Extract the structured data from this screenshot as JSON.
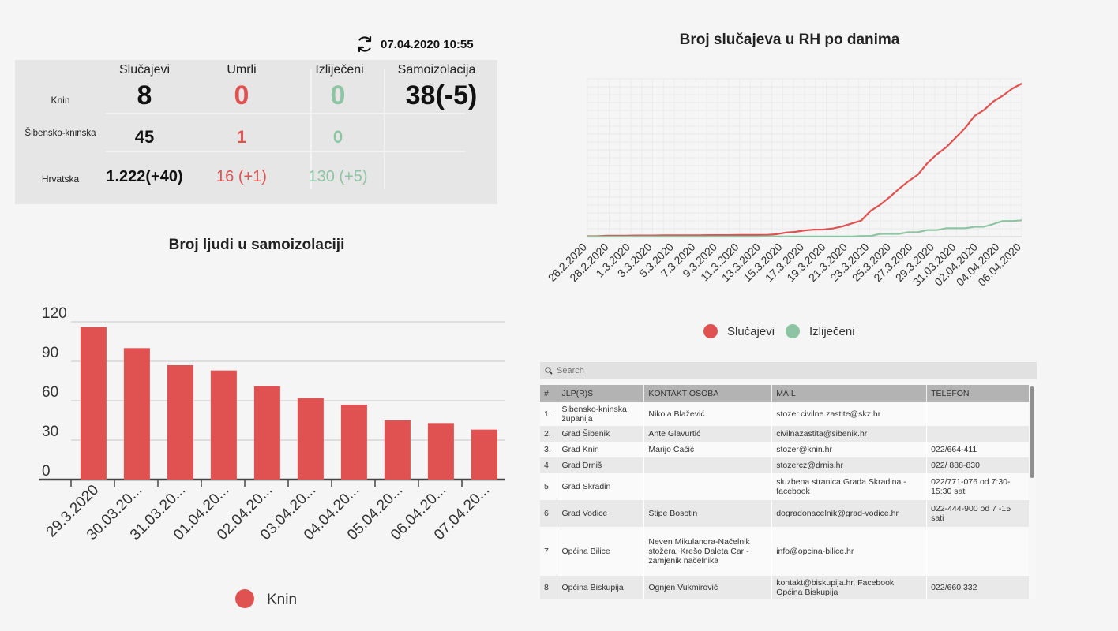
{
  "refresh": {
    "icon": "refresh-icon",
    "timestamp": "07.04.2020 10:55"
  },
  "stats": {
    "headers": [
      "Slučajevi",
      "Umrli",
      "Izliječeni",
      "Samoizolacija"
    ],
    "rows": [
      {
        "label": "Knin",
        "cases": "8",
        "deaths": "0",
        "recovered": "0",
        "isolation": "38(-5)"
      },
      {
        "label": "Šibensko-kninska",
        "cases": "45",
        "deaths": "1",
        "recovered": "0",
        "isolation": ""
      },
      {
        "label": "Hrvatska",
        "cases": "1.222(+40)",
        "deaths": "16 (+1)",
        "recovered": "130 (+5)",
        "isolation": ""
      }
    ],
    "colors": {
      "deaths": "#e05252",
      "recovered": "#8dc4a3"
    }
  },
  "line_title": "Broj slučajeva u RH po danima",
  "bar_title": "Broj ljudi u samoizolaciji",
  "chart_data": [
    {
      "type": "line",
      "title": "Broj slučajeva u RH po danima",
      "x_ticks": [
        "26.2.2020",
        "28.2.2020",
        "1.3.2020",
        "3.3.2020",
        "5.3.2020",
        "7.3.2020",
        "9.3.2020",
        "11.3.2020",
        "13.3.2020",
        "15.3.2020",
        "17.3.2020",
        "19.3.2020",
        "21.3.2020",
        "23.3.2020",
        "25.3.2020",
        "27.3.2020",
        "29.3.2020",
        "31.03.2020",
        "02.04.2020",
        "04.04.2020",
        "06.04.2020"
      ],
      "grid": true,
      "legend_position": "bottom",
      "series": [
        {
          "name": "Slučajevi",
          "color": "#e05252",
          "values": [
            3,
            3,
            7,
            7,
            7,
            9,
            9,
            9,
            10,
            11,
            11,
            11,
            11,
            12,
            12,
            12,
            13,
            13,
            13,
            14,
            19,
            32,
            38,
            49,
            56,
            57,
            65,
            81,
            105,
            128,
            206,
            254,
            315,
            382,
            442,
            495,
            586,
            657,
            713,
            790,
            867,
            963,
            1011,
            1079,
            1126,
            1182,
            1222
          ]
        },
        {
          "name": "Izliječeni",
          "color": "#8dc4a3",
          "values": [
            0,
            0,
            0,
            0,
            0,
            0,
            0,
            0,
            0,
            0,
            0,
            0,
            0,
            0,
            0,
            0,
            0,
            0,
            0,
            1,
            1,
            1,
            1,
            1,
            1,
            1,
            1,
            1,
            1,
            5,
            5,
            22,
            22,
            22,
            36,
            36,
            52,
            52,
            67,
            67,
            67,
            79,
            79,
            101,
            125,
            125,
            130
          ]
        }
      ]
    },
    {
      "type": "bar",
      "title": "Broj ljudi u samoizolaciji",
      "categories": [
        "29.3.2020",
        "30.03.20...",
        "31.03.20...",
        "01.04.20...",
        "02.04.20...",
        "03.04.20...",
        "04.04.20...",
        "05.04.20...",
        "06.04.20...",
        "07.04.20..."
      ],
      "y_ticks": [
        "0",
        "30",
        "60",
        "90",
        "120"
      ],
      "ylim": [
        0,
        120
      ],
      "series": [
        {
          "name": "Knin",
          "color": "#e05252",
          "values": [
            116,
            100,
            87,
            83,
            71,
            62,
            57,
            45,
            43,
            38
          ]
        }
      ],
      "legend_position": "bottom"
    }
  ],
  "table": {
    "search_placeholder": "Search",
    "headers": [
      "#",
      "JLP(R)S",
      "KONTAKT OSOBA",
      "MAIL",
      "TELEFON"
    ],
    "rows": [
      [
        "1.",
        "Šibensko-kninska županija",
        "Nikola Blažević",
        "stozer.civilne.zastite@skz.hr",
        ""
      ],
      [
        "2.",
        "Grad Šibenik",
        "Ante Glavurtić",
        "civilnazastita@sibenik.hr",
        ""
      ],
      [
        "3.",
        "Grad Knin",
        "Marijo Ćaćić",
        "stozer@knin.hr",
        "022/664-411"
      ],
      [
        "4",
        "Grad Drniš",
        "",
        "stozercz@drnis.hr",
        "022/ 888-830"
      ],
      [
        "5",
        "Grad Skradin",
        "",
        "sluzbena stranica Grada Skradina - facebook",
        "022/771-076 od 7:30-15:30 sati"
      ],
      [
        "6",
        "Grad Vodice",
        "Stipe Bosotin",
        "dogradonacelnik@grad-vodice.hr",
        "022-444-900 od 7 -15 sati"
      ],
      [
        "7",
        "Općina Bilice",
        "Neven Mikulandra-Načelnik stožera, Krešo Daleta Car -zamjenik načelnika",
        "info@opcina-bilice.hr",
        ""
      ],
      [
        "8",
        "Općina Biskupija",
        "Ognjen Vukmirović",
        "kontakt@biskupija.hr, Facebook Općina Biskupija",
        "022/660 332"
      ]
    ]
  }
}
